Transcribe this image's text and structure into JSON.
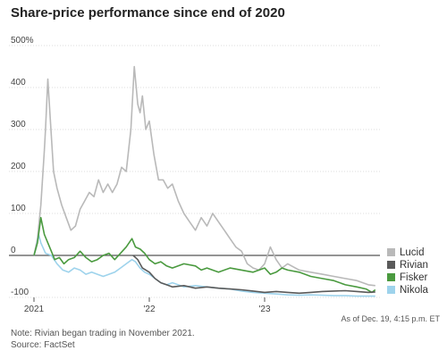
{
  "chart_data": {
    "type": "line",
    "title": "Share-price performance since end of 2020",
    "ylabel": "",
    "xlabel": "",
    "ylim": [
      -100,
      500
    ],
    "xlim": [
      2021.0,
      2024.0
    ],
    "y_ticks": [
      {
        "value": 500,
        "label": "500%"
      },
      {
        "value": 400,
        "label": "400"
      },
      {
        "value": 300,
        "label": "300"
      },
      {
        "value": 200,
        "label": "200"
      },
      {
        "value": 100,
        "label": "100"
      },
      {
        "value": 0,
        "label": "0"
      },
      {
        "value": -100,
        "label": "-100"
      }
    ],
    "x_ticks": [
      {
        "value": 2021.0,
        "label": "2021"
      },
      {
        "value": 2022.0,
        "label": "'22"
      },
      {
        "value": 2023.0,
        "label": "'23"
      }
    ],
    "grid": "horizontal",
    "legend_position": "right",
    "series": [
      {
        "name": "Lucid",
        "color": "#b9b9b9",
        "points": [
          [
            2021.0,
            0
          ],
          [
            2021.03,
            40
          ],
          [
            2021.06,
            120
          ],
          [
            2021.09,
            250
          ],
          [
            2021.1,
            300
          ],
          [
            2021.12,
            420
          ],
          [
            2021.14,
            330
          ],
          [
            2021.17,
            200
          ],
          [
            2021.2,
            160
          ],
          [
            2021.24,
            120
          ],
          [
            2021.28,
            90
          ],
          [
            2021.32,
            60
          ],
          [
            2021.36,
            70
          ],
          [
            2021.4,
            110
          ],
          [
            2021.44,
            130
          ],
          [
            2021.48,
            150
          ],
          [
            2021.52,
            140
          ],
          [
            2021.56,
            180
          ],
          [
            2021.6,
            150
          ],
          [
            2021.64,
            170
          ],
          [
            2021.68,
            150
          ],
          [
            2021.72,
            170
          ],
          [
            2021.76,
            210
          ],
          [
            2021.8,
            200
          ],
          [
            2021.84,
            300
          ],
          [
            2021.87,
            450
          ],
          [
            2021.9,
            360
          ],
          [
            2021.92,
            340
          ],
          [
            2021.94,
            380
          ],
          [
            2021.97,
            300
          ],
          [
            2022.0,
            320
          ],
          [
            2022.04,
            240
          ],
          [
            2022.08,
            180
          ],
          [
            2022.12,
            180
          ],
          [
            2022.16,
            160
          ],
          [
            2022.2,
            170
          ],
          [
            2022.25,
            130
          ],
          [
            2022.3,
            100
          ],
          [
            2022.35,
            80
          ],
          [
            2022.4,
            60
          ],
          [
            2022.45,
            90
          ],
          [
            2022.5,
            70
          ],
          [
            2022.55,
            100
          ],
          [
            2022.6,
            80
          ],
          [
            2022.65,
            60
          ],
          [
            2022.7,
            40
          ],
          [
            2022.75,
            20
          ],
          [
            2022.8,
            10
          ],
          [
            2022.85,
            -20
          ],
          [
            2022.9,
            -30
          ],
          [
            2022.95,
            -35
          ],
          [
            2023.0,
            -20
          ],
          [
            2023.05,
            20
          ],
          [
            2023.1,
            -10
          ],
          [
            2023.15,
            -30
          ],
          [
            2023.2,
            -20
          ],
          [
            2023.3,
            -35
          ],
          [
            2023.4,
            -40
          ],
          [
            2023.5,
            -45
          ],
          [
            2023.6,
            -50
          ],
          [
            2023.7,
            -55
          ],
          [
            2023.8,
            -60
          ],
          [
            2023.9,
            -70
          ],
          [
            2023.96,
            -72
          ]
        ]
      },
      {
        "name": "Nikola",
        "color": "#9ed3ec",
        "points": [
          [
            2021.0,
            0
          ],
          [
            2021.02,
            20
          ],
          [
            2021.04,
            50
          ],
          [
            2021.06,
            30
          ],
          [
            2021.1,
            5
          ],
          [
            2021.15,
            0
          ],
          [
            2021.2,
            -20
          ],
          [
            2021.25,
            -35
          ],
          [
            2021.3,
            -40
          ],
          [
            2021.35,
            -30
          ],
          [
            2021.4,
            -35
          ],
          [
            2021.45,
            -45
          ],
          [
            2021.5,
            -40
          ],
          [
            2021.55,
            -45
          ],
          [
            2021.6,
            -50
          ],
          [
            2021.65,
            -45
          ],
          [
            2021.7,
            -40
          ],
          [
            2021.75,
            -30
          ],
          [
            2021.8,
            -20
          ],
          [
            2021.85,
            -10
          ],
          [
            2021.88,
            -15
          ],
          [
            2021.92,
            -30
          ],
          [
            2021.96,
            -40
          ],
          [
            2022.0,
            -45
          ],
          [
            2022.05,
            -55
          ],
          [
            2022.1,
            -65
          ],
          [
            2022.15,
            -70
          ],
          [
            2022.2,
            -65
          ],
          [
            2022.25,
            -70
          ],
          [
            2022.3,
            -75
          ],
          [
            2022.4,
            -72
          ],
          [
            2022.5,
            -75
          ],
          [
            2022.6,
            -78
          ],
          [
            2022.7,
            -80
          ],
          [
            2022.8,
            -85
          ],
          [
            2022.9,
            -88
          ],
          [
            2023.0,
            -90
          ],
          [
            2023.1,
            -92
          ],
          [
            2023.2,
            -94
          ],
          [
            2023.3,
            -95
          ],
          [
            2023.4,
            -94
          ],
          [
            2023.5,
            -95
          ],
          [
            2023.6,
            -96
          ],
          [
            2023.7,
            -96
          ],
          [
            2023.8,
            -97
          ],
          [
            2023.9,
            -97
          ],
          [
            2023.96,
            -97
          ]
        ]
      },
      {
        "name": "Fisker",
        "color": "#4a9a3f",
        "points": [
          [
            2021.0,
            0
          ],
          [
            2021.03,
            30
          ],
          [
            2021.06,
            90
          ],
          [
            2021.09,
            50
          ],
          [
            2021.12,
            30
          ],
          [
            2021.15,
            10
          ],
          [
            2021.18,
            -10
          ],
          [
            2021.22,
            -5
          ],
          [
            2021.26,
            -20
          ],
          [
            2021.3,
            -10
          ],
          [
            2021.35,
            -5
          ],
          [
            2021.4,
            10
          ],
          [
            2021.45,
            -5
          ],
          [
            2021.5,
            -15
          ],
          [
            2021.55,
            -10
          ],
          [
            2021.6,
            0
          ],
          [
            2021.65,
            5
          ],
          [
            2021.7,
            -10
          ],
          [
            2021.75,
            5
          ],
          [
            2021.8,
            20
          ],
          [
            2021.85,
            40
          ],
          [
            2021.88,
            20
          ],
          [
            2021.92,
            15
          ],
          [
            2021.96,
            5
          ],
          [
            2022.0,
            -10
          ],
          [
            2022.05,
            -20
          ],
          [
            2022.1,
            -15
          ],
          [
            2022.15,
            -25
          ],
          [
            2022.2,
            -30
          ],
          [
            2022.3,
            -20
          ],
          [
            2022.4,
            -25
          ],
          [
            2022.45,
            -35
          ],
          [
            2022.5,
            -30
          ],
          [
            2022.6,
            -40
          ],
          [
            2022.7,
            -30
          ],
          [
            2022.8,
            -35
          ],
          [
            2022.9,
            -40
          ],
          [
            2023.0,
            -30
          ],
          [
            2023.05,
            -45
          ],
          [
            2023.1,
            -40
          ],
          [
            2023.15,
            -30
          ],
          [
            2023.2,
            -35
          ],
          [
            2023.3,
            -40
          ],
          [
            2023.4,
            -50
          ],
          [
            2023.5,
            -55
          ],
          [
            2023.6,
            -60
          ],
          [
            2023.7,
            -70
          ],
          [
            2023.8,
            -75
          ],
          [
            2023.88,
            -80
          ],
          [
            2023.93,
            -88
          ],
          [
            2023.96,
            -82
          ]
        ]
      },
      {
        "name": "Rivian",
        "color": "#5a5a5a",
        "points": [
          [
            2021.86,
            0
          ],
          [
            2021.9,
            -10
          ],
          [
            2021.94,
            -30
          ],
          [
            2022.0,
            -40
          ],
          [
            2022.05,
            -55
          ],
          [
            2022.1,
            -65
          ],
          [
            2022.15,
            -70
          ],
          [
            2022.2,
            -75
          ],
          [
            2022.3,
            -72
          ],
          [
            2022.4,
            -78
          ],
          [
            2022.5,
            -75
          ],
          [
            2022.6,
            -78
          ],
          [
            2022.7,
            -80
          ],
          [
            2022.8,
            -82
          ],
          [
            2022.9,
            -85
          ],
          [
            2023.0,
            -88
          ],
          [
            2023.1,
            -86
          ],
          [
            2023.2,
            -88
          ],
          [
            2023.3,
            -90
          ],
          [
            2023.4,
            -88
          ],
          [
            2023.5,
            -86
          ],
          [
            2023.6,
            -85
          ],
          [
            2023.7,
            -84
          ],
          [
            2023.8,
            -86
          ],
          [
            2023.9,
            -88
          ],
          [
            2023.96,
            -87
          ]
        ]
      }
    ],
    "legend": [
      "Lucid",
      "Rivian",
      "Fisker",
      "Nikola"
    ],
    "annotations": {
      "as_of": "As of Dec. 19, 4:15 p.m. ET",
      "note": "Note: Rivian began trading in November 2021.",
      "source": "Source: FactSet"
    }
  },
  "colors": {
    "gridline": "#dcdcdc",
    "zero_line": "#555555"
  }
}
